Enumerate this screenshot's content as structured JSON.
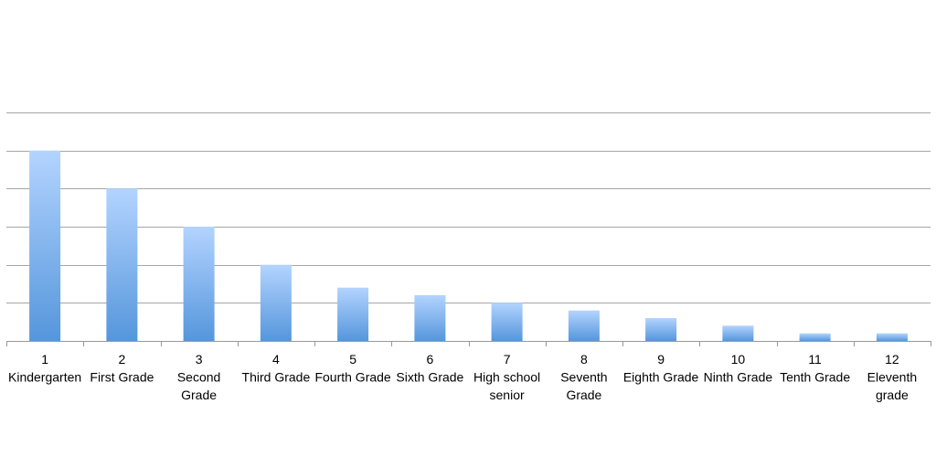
{
  "chart_data": {
    "type": "bar",
    "title": "",
    "xlabel": "",
    "ylabel": "",
    "grid": true,
    "y_axis_labels_shown": false,
    "ylim": [
      0,
      60
    ],
    "y_gridlines": [
      0,
      10,
      20,
      30,
      40,
      50,
      60
    ],
    "categories": [
      {
        "number": "1",
        "label": [
          "Kindergarten"
        ]
      },
      {
        "number": "2",
        "label": [
          "First Grade"
        ]
      },
      {
        "number": "3",
        "label": [
          "Second",
          "Grade"
        ]
      },
      {
        "number": "4",
        "label": [
          "Third Grade"
        ]
      },
      {
        "number": "5",
        "label": [
          "Fourth Grade"
        ]
      },
      {
        "number": "6",
        "label": [
          "Sixth Grade"
        ]
      },
      {
        "number": "7",
        "label": [
          "High school",
          "senior"
        ]
      },
      {
        "number": "8",
        "label": [
          "Seventh",
          "Grade"
        ]
      },
      {
        "number": "9",
        "label": [
          "Eighth Grade"
        ]
      },
      {
        "number": "10",
        "label": [
          "Ninth Grade"
        ]
      },
      {
        "number": "11",
        "label": [
          "Tenth Grade"
        ]
      },
      {
        "number": "12",
        "label": [
          "Eleventh",
          "grade"
        ]
      }
    ],
    "values": [
      50,
      40,
      30,
      20,
      14,
      12,
      10,
      8,
      6,
      4,
      2,
      2
    ],
    "colors": {
      "bar_top": "#b3d4ff",
      "bar_bottom": "#5596dc",
      "gridline": "#a6a6a6",
      "axis": "#999999"
    }
  }
}
